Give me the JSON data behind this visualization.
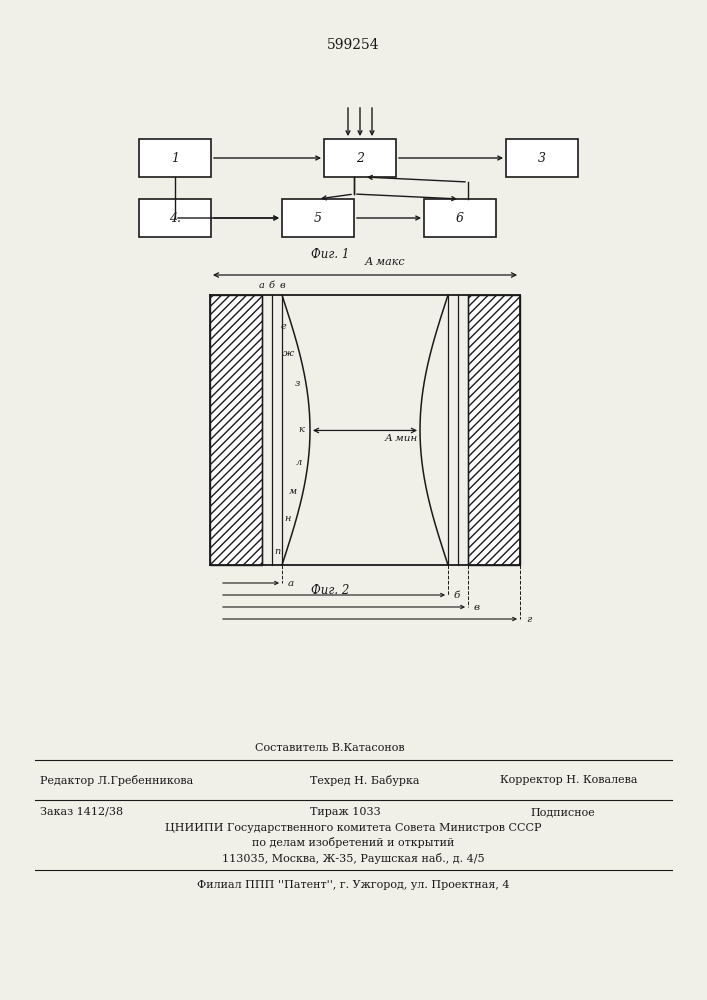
{
  "patent_number": "599254",
  "fig1_caption": "Фиг. 1",
  "fig2_caption": "Фиг. 2",
  "bg_color": "#f0efe8",
  "line_color": "#1a1a1a",
  "footer_sestavitel": "Составитель В.Катасонов",
  "footer_redaktor": "Редактор Л.Гребенникова",
  "footer_tehred": "Техред Н. Бабурка",
  "footer_korrektor": "Корректор Н. Ковалева",
  "footer_zakaz": "Заказ 1412/38",
  "footer_tirazh": "Тираж 1033",
  "footer_podpisnoe": "Подписное",
  "footer_cniip": "ЦНИИПИ Государственного комитета Совета Министров СССР",
  "footer_po_delam": "по делам изобретений и открытий",
  "footer_address": "113035, Москва, Ж-35, Раушская наб., д. 4/5",
  "footer_filial": "Филиал ППП ''Патент'', г. Ужгород, ул. Проектная, 4"
}
